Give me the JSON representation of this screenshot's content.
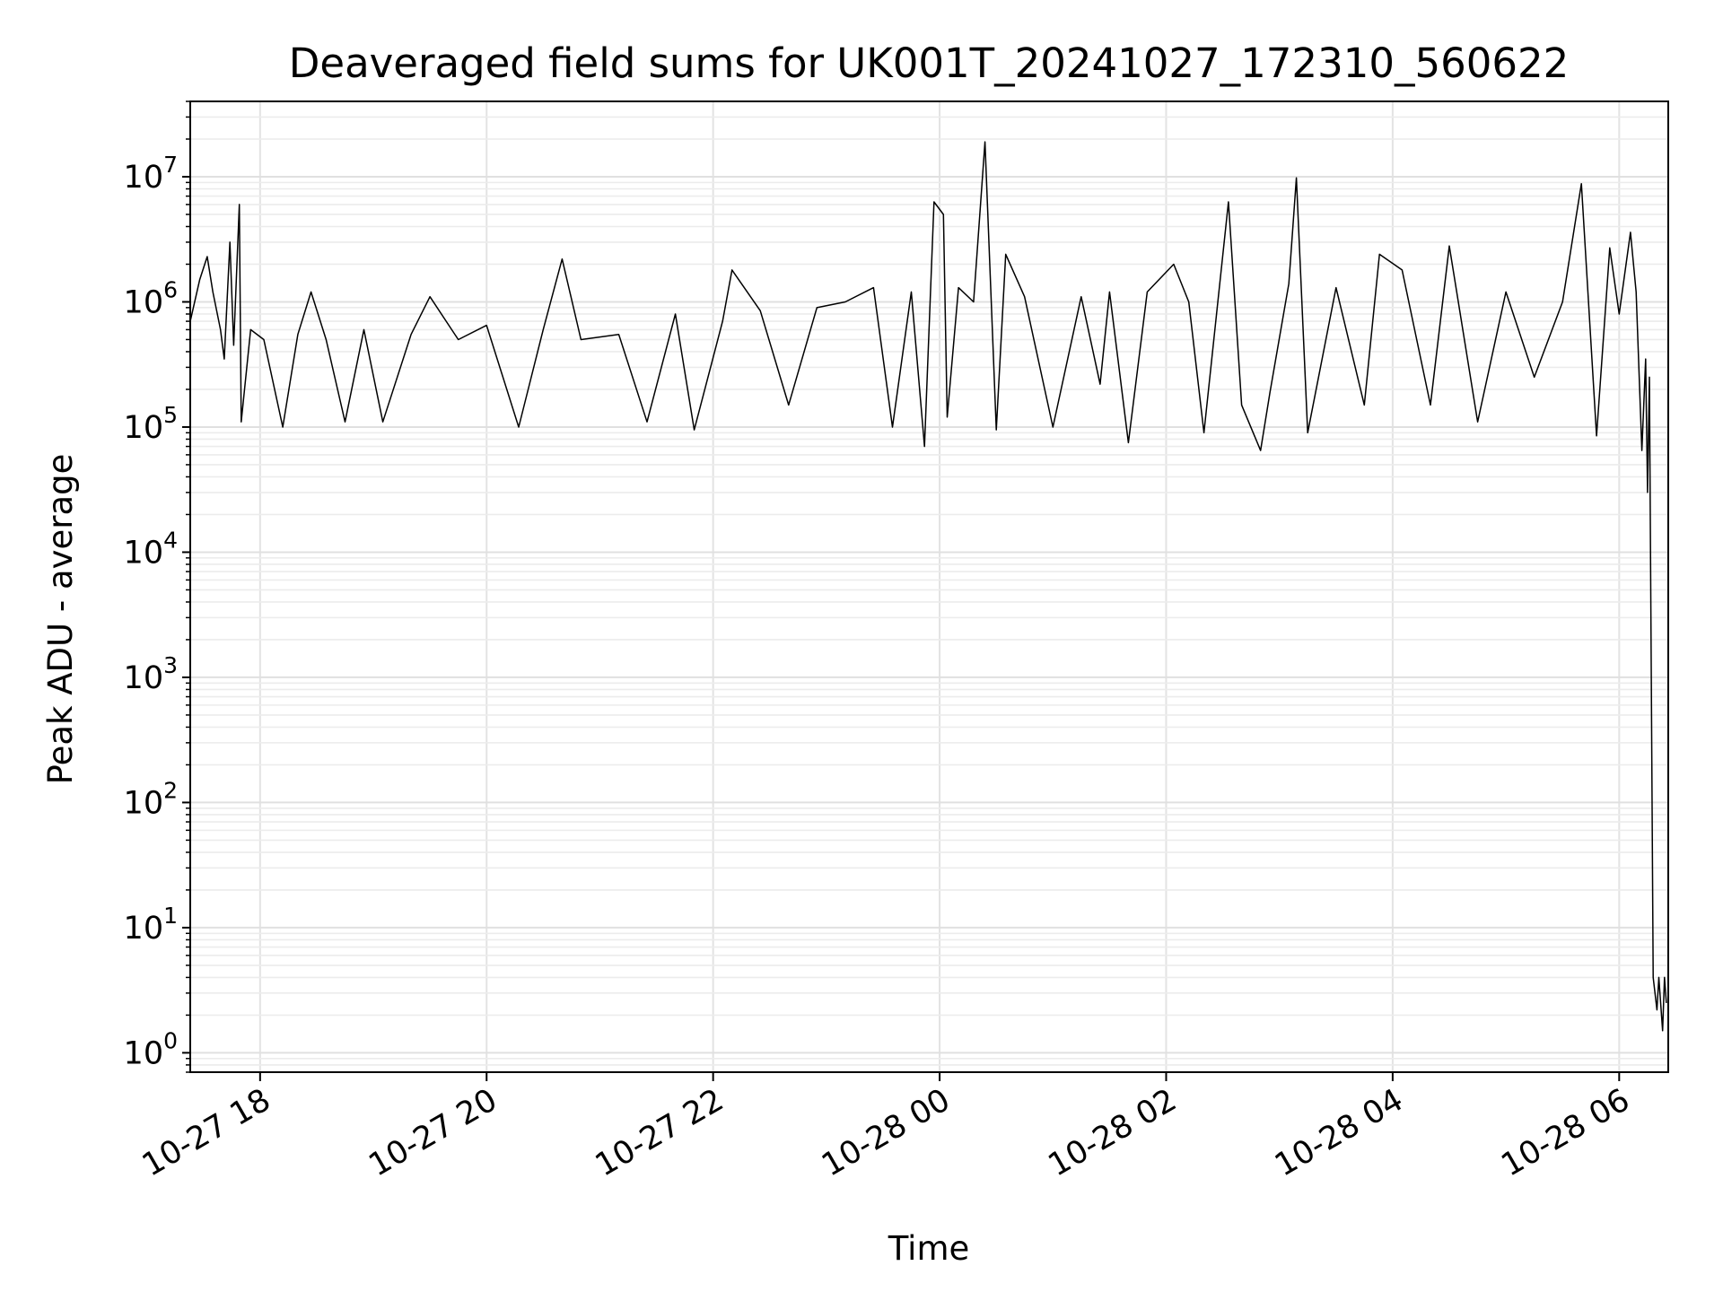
{
  "chart_data": {
    "type": "line",
    "title": "Deaveraged field sums for UK001T_20241027_172310_560622",
    "xlabel": "Time",
    "ylabel": "Peak ADU - average",
    "yscale": "log",
    "ylim": [
      0.7,
      40000000
    ],
    "xlim": [
      "2024-10-27T17:23:00",
      "2024-10-28T06:26:00"
    ],
    "x_ticks": [
      {
        "at": "2024-10-27T18:00",
        "label": "10-27 18"
      },
      {
        "at": "2024-10-27T20:00",
        "label": "10-27 20"
      },
      {
        "at": "2024-10-27T22:00",
        "label": "10-27 22"
      },
      {
        "at": "2024-10-28T00:00",
        "label": "10-28 00"
      },
      {
        "at": "2024-10-28T02:00",
        "label": "10-28 02"
      },
      {
        "at": "2024-10-28T04:00",
        "label": "10-28 04"
      },
      {
        "at": "2024-10-28T06:00",
        "label": "10-28 06"
      }
    ],
    "y_ticks": [
      {
        "value": 1,
        "base": "10",
        "exp": "0"
      },
      {
        "value": 10,
        "base": "10",
        "exp": "1"
      },
      {
        "value": 100,
        "base": "10",
        "exp": "2"
      },
      {
        "value": 1000,
        "base": "10",
        "exp": "3"
      },
      {
        "value": 10000,
        "base": "10",
        "exp": "4"
      },
      {
        "value": 100000,
        "base": "10",
        "exp": "5"
      },
      {
        "value": 1000000,
        "base": "10",
        "exp": "6"
      },
      {
        "value": 10000000,
        "base": "10",
        "exp": "7"
      }
    ],
    "grid": true,
    "line_color": "#000000",
    "series": [
      {
        "points": [
          [
            "2024-10-27T17:23",
            700000
          ],
          [
            "2024-10-27T17:28",
            1500000
          ],
          [
            "2024-10-27T17:32",
            2300000
          ],
          [
            "2024-10-27T17:35",
            1200000
          ],
          [
            "2024-10-27T17:39",
            600000
          ],
          [
            "2024-10-27T17:41",
            350000
          ],
          [
            "2024-10-27T17:44",
            3000000
          ],
          [
            "2024-10-27T17:46",
            450000
          ],
          [
            "2024-10-27T17:49",
            6000000
          ],
          [
            "2024-10-27T17:50",
            110000
          ],
          [
            "2024-10-27T17:55",
            600000
          ],
          [
            "2024-10-27T18:02",
            500000
          ],
          [
            "2024-10-27T18:12",
            100000
          ],
          [
            "2024-10-27T18:20",
            550000
          ],
          [
            "2024-10-27T18:27",
            1200000
          ],
          [
            "2024-10-27T18:35",
            500000
          ],
          [
            "2024-10-27T18:45",
            110000
          ],
          [
            "2024-10-27T18:55",
            600000
          ],
          [
            "2024-10-27T19:05",
            110000
          ],
          [
            "2024-10-27T19:20",
            550000
          ],
          [
            "2024-10-27T19:30",
            1100000
          ],
          [
            "2024-10-27T19:45",
            500000
          ],
          [
            "2024-10-27T20:00",
            650000
          ],
          [
            "2024-10-27T20:17",
            100000
          ],
          [
            "2024-10-27T20:30",
            600000
          ],
          [
            "2024-10-27T20:40",
            2200000
          ],
          [
            "2024-10-27T20:50",
            500000
          ],
          [
            "2024-10-27T21:10",
            550000
          ],
          [
            "2024-10-27T21:25",
            110000
          ],
          [
            "2024-10-27T21:40",
            800000
          ],
          [
            "2024-10-27T21:50",
            95000
          ],
          [
            "2024-10-27T22:05",
            700000
          ],
          [
            "2024-10-27T22:10",
            1800000
          ],
          [
            "2024-10-27T22:25",
            850000
          ],
          [
            "2024-10-27T22:40",
            150000
          ],
          [
            "2024-10-27T22:55",
            900000
          ],
          [
            "2024-10-27T23:10",
            1000000
          ],
          [
            "2024-10-27T23:25",
            1300000
          ],
          [
            "2024-10-27T23:35",
            100000
          ],
          [
            "2024-10-27T23:45",
            1200000
          ],
          [
            "2024-10-27T23:52",
            70000
          ],
          [
            "2024-10-27T23:57",
            6300000
          ],
          [
            "2024-10-28T00:02",
            5000000
          ],
          [
            "2024-10-28T00:04",
            120000
          ],
          [
            "2024-10-28T00:10",
            1300000
          ],
          [
            "2024-10-28T00:18",
            1000000
          ],
          [
            "2024-10-28T00:24",
            19000000
          ],
          [
            "2024-10-28T00:30",
            95000
          ],
          [
            "2024-10-28T00:35",
            2400000
          ],
          [
            "2024-10-28T00:45",
            1100000
          ],
          [
            "2024-10-28T01:00",
            100000
          ],
          [
            "2024-10-28T01:15",
            1100000
          ],
          [
            "2024-10-28T01:25",
            220000
          ],
          [
            "2024-10-28T01:30",
            1200000
          ],
          [
            "2024-10-28T01:40",
            75000
          ],
          [
            "2024-10-28T01:50",
            1200000
          ],
          [
            "2024-10-28T02:04",
            2000000
          ],
          [
            "2024-10-28T02:12",
            1000000
          ],
          [
            "2024-10-28T02:20",
            90000
          ],
          [
            "2024-10-28T02:33",
            6300000
          ],
          [
            "2024-10-28T02:40",
            150000
          ],
          [
            "2024-10-28T02:50",
            65000
          ],
          [
            "2024-10-28T02:55",
            190000
          ],
          [
            "2024-10-28T03:05",
            1400000
          ],
          [
            "2024-10-28T03:09",
            9800000
          ],
          [
            "2024-10-28T03:15",
            90000
          ],
          [
            "2024-10-28T03:30",
            1300000
          ],
          [
            "2024-10-28T03:45",
            150000
          ],
          [
            "2024-10-28T03:53",
            2400000
          ],
          [
            "2024-10-28T04:05",
            1800000
          ],
          [
            "2024-10-28T04:20",
            150000
          ],
          [
            "2024-10-28T04:30",
            2800000
          ],
          [
            "2024-10-28T04:45",
            110000
          ],
          [
            "2024-10-28T05:00",
            1200000
          ],
          [
            "2024-10-28T05:15",
            250000
          ],
          [
            "2024-10-28T05:30",
            1000000
          ],
          [
            "2024-10-28T05:40",
            8800000
          ],
          [
            "2024-10-28T05:48",
            85000
          ],
          [
            "2024-10-28T05:55",
            2700000
          ],
          [
            "2024-10-28T06:00",
            800000
          ],
          [
            "2024-10-28T06:06",
            3600000
          ],
          [
            "2024-10-28T06:09",
            1200000
          ],
          [
            "2024-10-28T06:12",
            65000
          ],
          [
            "2024-10-28T06:14",
            350000
          ],
          [
            "2024-10-28T06:15",
            30000
          ],
          [
            "2024-10-28T06:16",
            250000
          ],
          [
            "2024-10-28T06:17",
            1000
          ],
          [
            "2024-10-28T06:18",
            4
          ],
          [
            "2024-10-28T06:20",
            2.2
          ],
          [
            "2024-10-28T06:21",
            4
          ],
          [
            "2024-10-28T06:23",
            1.5
          ],
          [
            "2024-10-28T06:24",
            4
          ],
          [
            "2024-10-28T06:25",
            2.5
          ]
        ]
      }
    ]
  }
}
